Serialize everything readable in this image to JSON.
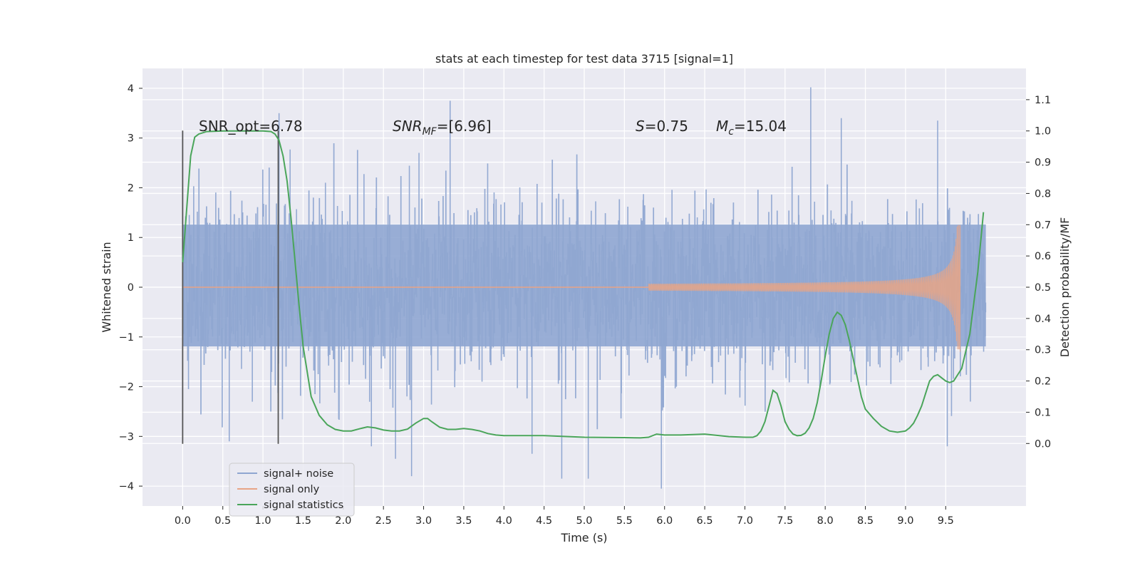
{
  "chart_data": {
    "type": "line",
    "title": "stats at each timestep for test data 3715 [signal=1]",
    "xlabel": "Time (s)",
    "ylabel_left": "Whitened strain",
    "ylabel_right": "Detection probability/MF",
    "xlim": [
      -0.5,
      10.5
    ],
    "ylim_left": [
      -4.4,
      4.4
    ],
    "ylim_right": [
      -0.2,
      1.2
    ],
    "x_ticks": [
      "0.0",
      "0.5",
      "1.0",
      "1.5",
      "2.0",
      "2.5",
      "3.0",
      "3.5",
      "4.0",
      "4.5",
      "5.0",
      "5.5",
      "6.0",
      "6.5",
      "7.0",
      "7.5",
      "8.0",
      "8.5",
      "9.0",
      "9.5"
    ],
    "y_ticks_left": [
      "4",
      "3",
      "2",
      "1",
      "0",
      "−1",
      "−2",
      "−3",
      "−4"
    ],
    "y_ticks_right": [
      "1.1",
      "1.0",
      "0.9",
      "0.8",
      "0.7",
      "0.6",
      "0.5",
      "0.4",
      "0.3",
      "0.2",
      "0.1",
      "0.0"
    ],
    "grid": true,
    "legend_position": "lower-left",
    "annotations": {
      "snr_opt": "SNR_opt=6.78",
      "snr_mf_main": "SNR",
      "snr_mf_sub": "MF",
      "snr_mf_rest": "=[6.96]",
      "s_main": "S",
      "s_rest": "=0.75",
      "mc_main": "M",
      "mc_sub": "c",
      "mc_rest": "=15.04"
    },
    "vlines_x": [
      0.0,
      1.19
    ],
    "series": [
      {
        "name": "signal+ noise",
        "color": "#8fa6d1",
        "x_range": [
          0.0,
          10.0
        ],
        "typical_envelope": [
          -1.7,
          1.8
        ],
        "extremes": [
          {
            "x": 0.58,
            "y": -3.1
          },
          {
            "x": 1.2,
            "y": 3.5
          },
          {
            "x": 2.35,
            "y": -3.2
          },
          {
            "x": 2.65,
            "y": -3.45
          },
          {
            "x": 2.85,
            "y": -3.8
          },
          {
            "x": 3.33,
            "y": 3.75
          },
          {
            "x": 4.35,
            "y": -3.35
          },
          {
            "x": 4.72,
            "y": -3.85
          },
          {
            "x": 5.05,
            "y": -3.85
          },
          {
            "x": 5.96,
            "y": -4.05
          },
          {
            "x": 7.82,
            "y": 4.02
          },
          {
            "x": 9.52,
            "y": -3.2
          },
          {
            "x": 9.4,
            "y": 3.35
          },
          {
            "x": 8.2,
            "y": 3.4
          }
        ]
      },
      {
        "name": "signal only",
        "color": "#e8a486",
        "chirp": {
          "start_x": 5.8,
          "end_x": 9.68,
          "start_amp": 0.04,
          "peak_amp": 1.25,
          "end_value": -1.3
        }
      },
      {
        "name": "signal statistics",
        "color": "#4aa55a",
        "x": [
          0.0,
          0.05,
          0.1,
          0.15,
          0.2,
          0.3,
          0.5,
          0.8,
          1.0,
          1.1,
          1.15,
          1.2,
          1.25,
          1.3,
          1.35,
          1.4,
          1.45,
          1.5,
          1.6,
          1.7,
          1.8,
          1.9,
          2.0,
          2.1,
          2.2,
          2.3,
          2.4,
          2.5,
          2.6,
          2.7,
          2.8,
          2.9,
          3.0,
          3.05,
          3.1,
          3.2,
          3.3,
          3.4,
          3.5,
          3.6,
          3.7,
          3.8,
          3.9,
          4.0,
          4.5,
          5.0,
          5.5,
          5.7,
          5.8,
          5.9,
          6.0,
          6.2,
          6.5,
          6.8,
          7.0,
          7.1,
          7.15,
          7.2,
          7.25,
          7.3,
          7.35,
          7.4,
          7.45,
          7.5,
          7.55,
          7.6,
          7.65,
          7.7,
          7.75,
          7.8,
          7.85,
          7.9,
          7.95,
          8.0,
          8.05,
          8.1,
          8.15,
          8.2,
          8.25,
          8.3,
          8.35,
          8.4,
          8.45,
          8.5,
          8.6,
          8.7,
          8.8,
          8.9,
          9.0,
          9.05,
          9.1,
          9.15,
          9.2,
          9.25,
          9.3,
          9.35,
          9.4,
          9.45,
          9.5,
          9.55,
          9.6,
          9.7,
          9.8,
          9.9,
          9.97
        ],
        "y": [
          0.58,
          0.75,
          0.92,
          0.98,
          0.99,
          0.998,
          1.0,
          1.0,
          1.0,
          0.998,
          0.99,
          0.97,
          0.92,
          0.84,
          0.72,
          0.58,
          0.44,
          0.31,
          0.15,
          0.09,
          0.06,
          0.045,
          0.04,
          0.04,
          0.047,
          0.053,
          0.05,
          0.043,
          0.04,
          0.04,
          0.046,
          0.065,
          0.08,
          0.08,
          0.07,
          0.052,
          0.045,
          0.045,
          0.048,
          0.045,
          0.04,
          0.032,
          0.027,
          0.025,
          0.025,
          0.02,
          0.019,
          0.018,
          0.02,
          0.03,
          0.027,
          0.027,
          0.03,
          0.022,
          0.02,
          0.02,
          0.025,
          0.04,
          0.07,
          0.12,
          0.17,
          0.16,
          0.12,
          0.07,
          0.045,
          0.03,
          0.025,
          0.026,
          0.033,
          0.05,
          0.08,
          0.13,
          0.2,
          0.28,
          0.35,
          0.4,
          0.42,
          0.41,
          0.38,
          0.33,
          0.27,
          0.21,
          0.15,
          0.11,
          0.08,
          0.055,
          0.04,
          0.036,
          0.04,
          0.05,
          0.065,
          0.09,
          0.12,
          0.16,
          0.2,
          0.215,
          0.22,
          0.21,
          0.2,
          0.195,
          0.2,
          0.24,
          0.35,
          0.55,
          0.74
        ]
      }
    ]
  }
}
